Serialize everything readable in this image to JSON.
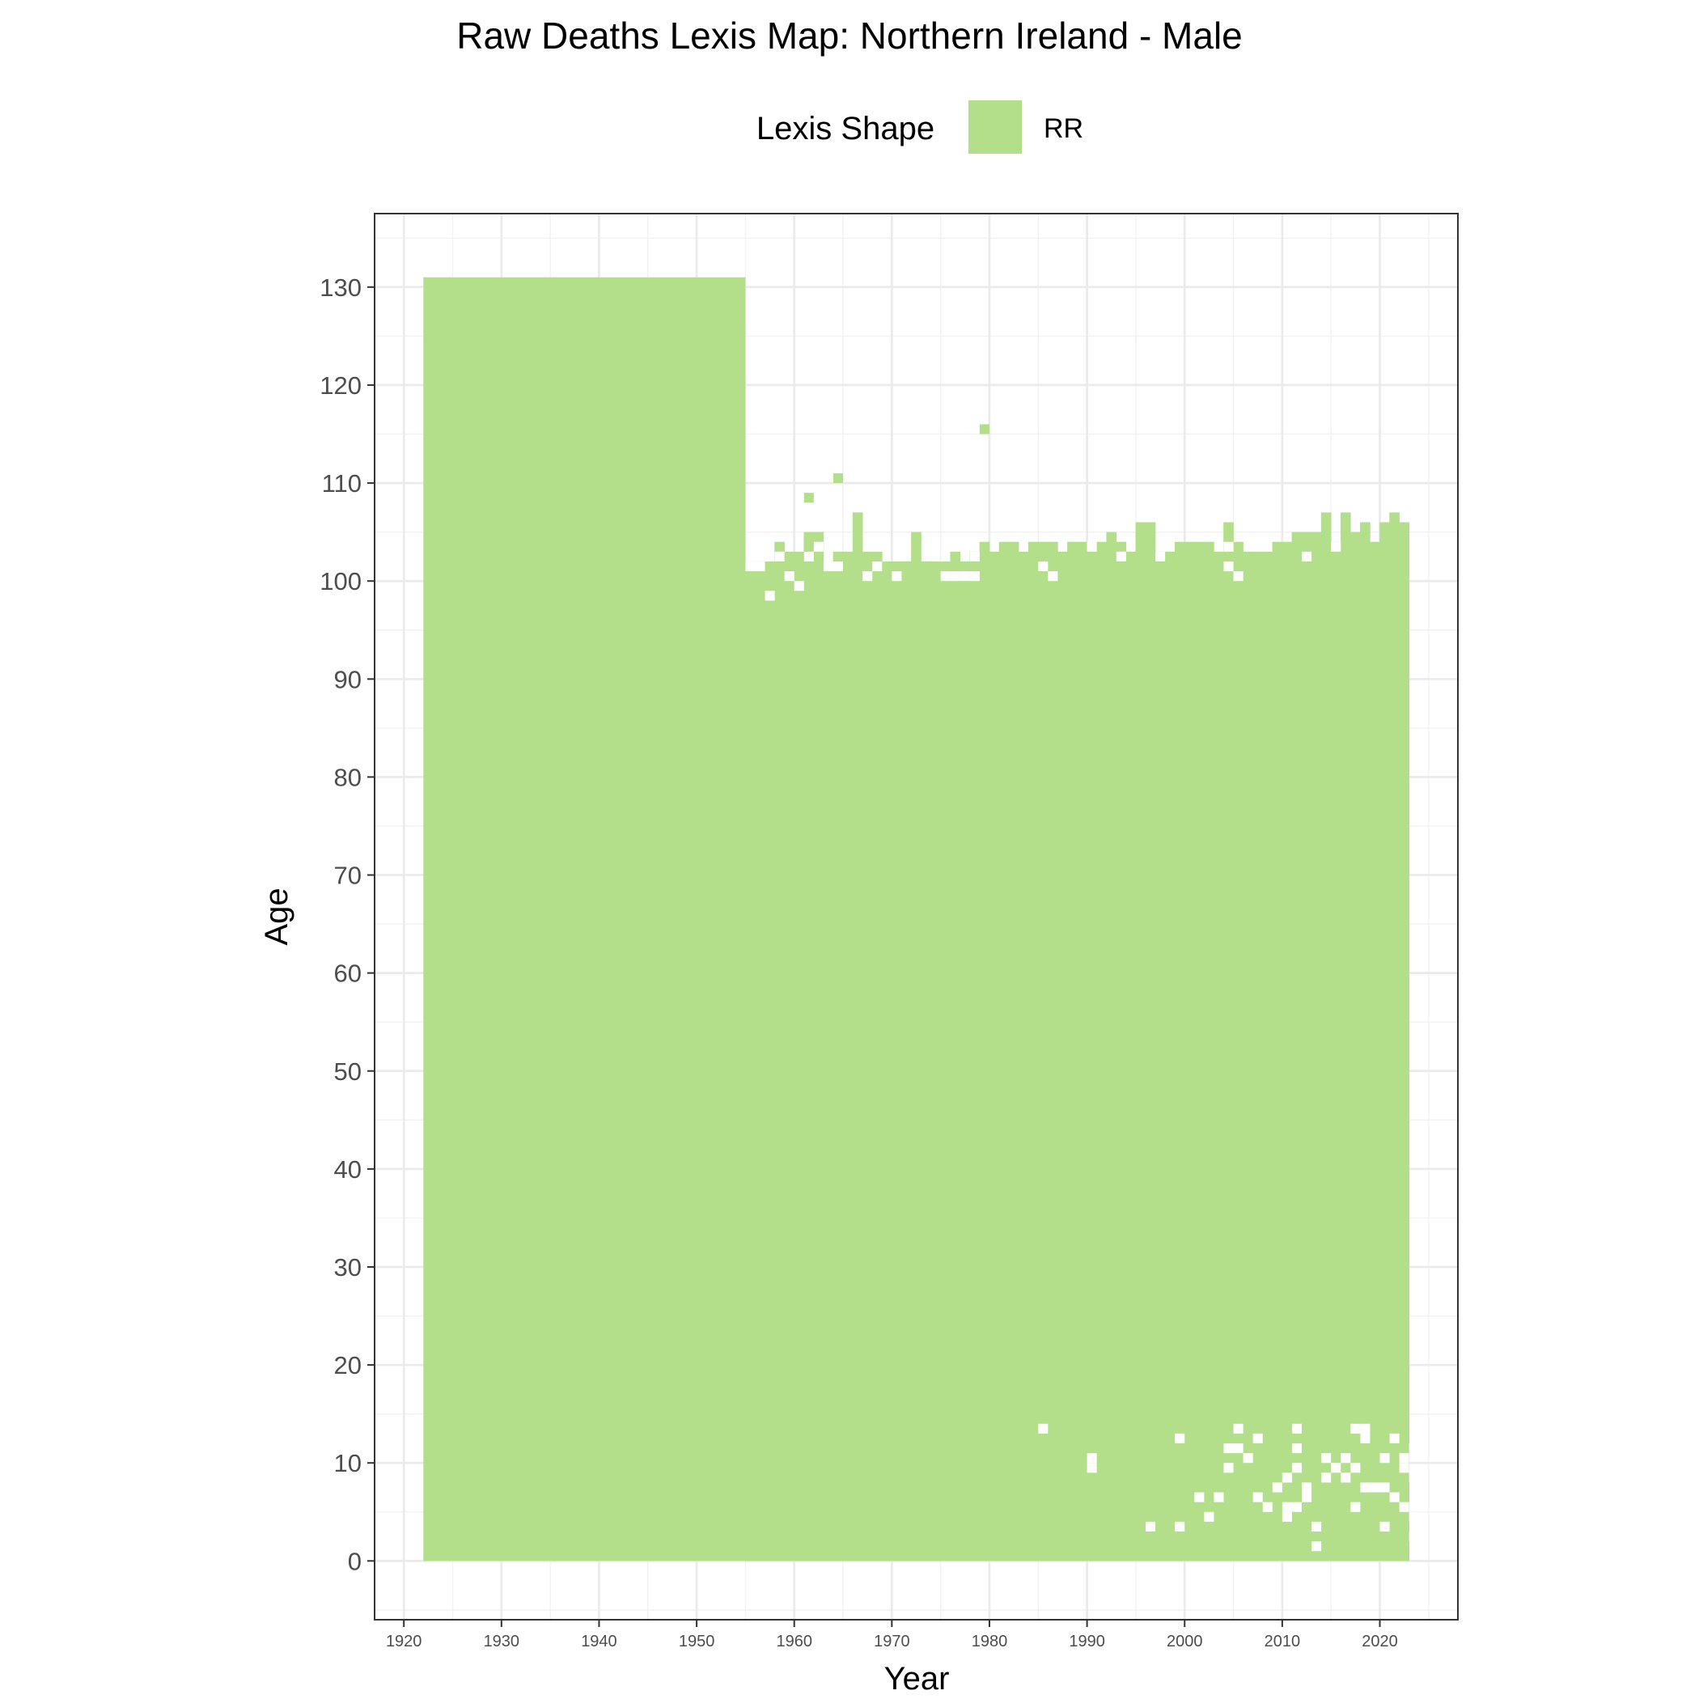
{
  "chart_data": {
    "type": "heatmap",
    "title": "Raw Deaths Lexis Map: Northern Ireland - Male",
    "xlabel": "Year",
    "ylabel": "Age",
    "xlim": [
      1917,
      2028
    ],
    "ylim": [
      -6,
      137.5
    ],
    "x_ticks": [
      "1920",
      "1930",
      "1940",
      "1950",
      "1960",
      "1970",
      "1980",
      "1990",
      "2000",
      "2010",
      "2020"
    ],
    "y_ticks": [
      "0",
      "10",
      "20",
      "30",
      "40",
      "50",
      "60",
      "70",
      "80",
      "90",
      "100",
      "110",
      "120",
      "130"
    ],
    "grid": true,
    "legend": {
      "title": "Lexis Shape",
      "position": "top",
      "entries": [
        {
          "label": "RR",
          "color": "#b3df8a"
        }
      ]
    },
    "fill_color": "#b3df8a",
    "blocks": [
      {
        "x0": 1922,
        "x1": 1955,
        "y0": 0,
        "y1": 131
      },
      {
        "x0": 1955,
        "x1": 2023,
        "y0": 0,
        "y1": 102
      }
    ],
    "upper_age_by_year": [
      [
        1955,
        102
      ],
      [
        1956,
        102
      ],
      [
        1957,
        101
      ],
      [
        1958,
        104
      ],
      [
        1959,
        103
      ],
      [
        1960,
        103
      ],
      [
        1961,
        105
      ],
      [
        1962,
        105
      ],
      [
        1963,
        102
      ],
      [
        1964,
        103
      ],
      [
        1965,
        103
      ],
      [
        1966,
        107
      ],
      [
        1967,
        103
      ],
      [
        1968,
        103
      ],
      [
        1969,
        102
      ],
      [
        1970,
        101
      ],
      [
        1971,
        102
      ],
      [
        1972,
        105
      ],
      [
        1973,
        102
      ],
      [
        1974,
        102
      ],
      [
        1975,
        101
      ],
      [
        1976,
        103
      ],
      [
        1977,
        101
      ],
      [
        1978,
        103
      ],
      [
        1979,
        104
      ],
      [
        1980,
        103
      ],
      [
        1981,
        104
      ],
      [
        1982,
        104
      ],
      [
        1983,
        103
      ],
      [
        1984,
        104
      ],
      [
        1985,
        104
      ],
      [
        1986,
        104
      ],
      [
        1987,
        103
      ],
      [
        1988,
        104
      ],
      [
        1989,
        104
      ],
      [
        1990,
        103
      ],
      [
        1991,
        104
      ],
      [
        1992,
        105
      ],
      [
        1993,
        104
      ],
      [
        1994,
        103
      ],
      [
        1995,
        106
      ],
      [
        1996,
        106
      ],
      [
        1997,
        103
      ],
      [
        1998,
        103
      ],
      [
        1999,
        104
      ],
      [
        2000,
        104
      ],
      [
        2001,
        104
      ],
      [
        2002,
        104
      ],
      [
        2003,
        103
      ],
      [
        2004,
        106
      ],
      [
        2005,
        104
      ],
      [
        2006,
        103
      ],
      [
        2007,
        103
      ],
      [
        2008,
        103
      ],
      [
        2009,
        104
      ],
      [
        2010,
        104
      ],
      [
        2011,
        105
      ],
      [
        2012,
        105
      ],
      [
        2013,
        105
      ],
      [
        2014,
        107
      ],
      [
        2015,
        104
      ],
      [
        2016,
        107
      ],
      [
        2017,
        105
      ],
      [
        2018,
        106
      ],
      [
        2019,
        104
      ],
      [
        2020,
        106
      ],
      [
        2021,
        107
      ],
      [
        2022,
        106
      ]
    ],
    "extra_cells": [
      [
        1961,
        108
      ],
      [
        1964,
        110
      ],
      [
        1966,
        106
      ],
      [
        1979,
        115
      ]
    ],
    "holes": [
      [
        1955,
        101
      ],
      [
        1956,
        101
      ],
      [
        1957,
        98
      ],
      [
        1958,
        102
      ],
      [
        1959,
        100
      ],
      [
        1960,
        99
      ],
      [
        1961,
        102
      ],
      [
        1962,
        103
      ],
      [
        1963,
        101
      ],
      [
        1964,
        101
      ],
      [
        1967,
        100
      ],
      [
        1968,
        101
      ],
      [
        1970,
        100
      ],
      [
        1975,
        100
      ],
      [
        1976,
        100
      ],
      [
        1977,
        100
      ],
      [
        1978,
        100
      ],
      [
        1978,
        102
      ],
      [
        1985,
        101
      ],
      [
        1986,
        100
      ],
      [
        1990,
        103
      ],
      [
        1993,
        102
      ],
      [
        1997,
        102
      ],
      [
        2004,
        103
      ],
      [
        2004,
        101
      ],
      [
        2005,
        100
      ],
      [
        2012,
        102
      ],
      [
        2015,
        103
      ],
      [
        1985,
        13
      ],
      [
        1990,
        9
      ],
      [
        1990,
        10
      ],
      [
        1996,
        3
      ],
      [
        1999,
        3
      ],
      [
        1999,
        12
      ],
      [
        2001,
        6
      ],
      [
        2002,
        4
      ],
      [
        2003,
        6
      ],
      [
        2004,
        9
      ],
      [
        2004,
        11
      ],
      [
        2005,
        11
      ],
      [
        2005,
        13
      ],
      [
        2006,
        10
      ],
      [
        2007,
        12
      ],
      [
        2007,
        6
      ],
      [
        2008,
        5
      ],
      [
        2009,
        7
      ],
      [
        2010,
        8
      ],
      [
        2010,
        4
      ],
      [
        2010,
        5
      ],
      [
        2011,
        5
      ],
      [
        2011,
        9
      ],
      [
        2011,
        11
      ],
      [
        2011,
        13
      ],
      [
        2012,
        7
      ],
      [
        2012,
        6
      ],
      [
        2013,
        3
      ],
      [
        2013,
        1
      ],
      [
        2014,
        8
      ],
      [
        2014,
        10
      ],
      [
        2015,
        9
      ],
      [
        2016,
        10
      ],
      [
        2016,
        8
      ],
      [
        2017,
        9
      ],
      [
        2017,
        13
      ],
      [
        2017,
        5
      ],
      [
        2018,
        13
      ],
      [
        2018,
        7
      ],
      [
        2018,
        12
      ],
      [
        2019,
        7
      ],
      [
        2020,
        10
      ],
      [
        2020,
        3
      ],
      [
        2020,
        7
      ],
      [
        2021,
        12
      ],
      [
        2021,
        6
      ],
      [
        2022,
        9
      ],
      [
        2022,
        10
      ],
      [
        2022,
        5
      ],
      [
        2023,
        11
      ],
      [
        2023,
        8
      ],
      [
        2023,
        4
      ],
      [
        2023,
        2
      ]
    ]
  }
}
